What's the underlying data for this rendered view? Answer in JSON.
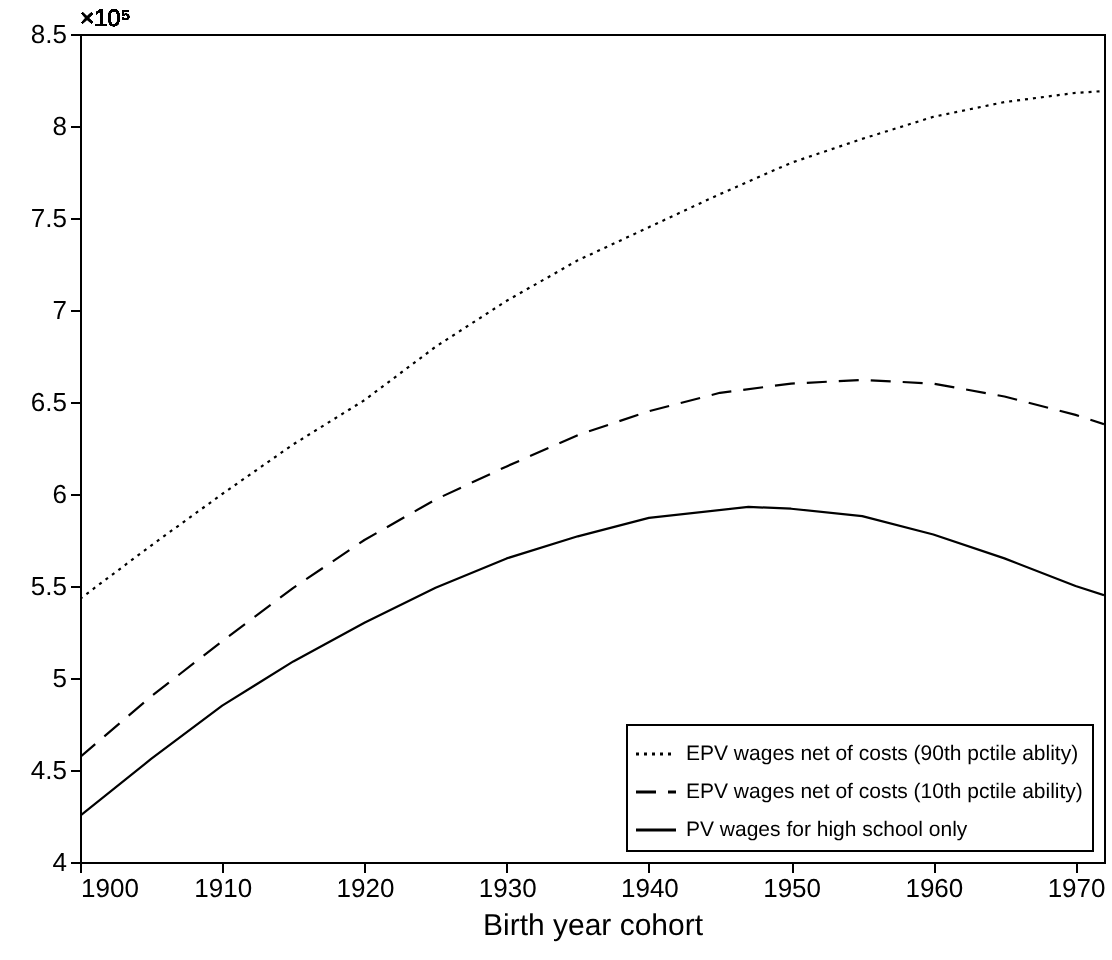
{
  "chart_data": {
    "type": "line",
    "xlabel": "Birth year cohort",
    "annotations": [
      "×10⁵"
    ],
    "xlim": [
      1900,
      1972
    ],
    "xticks": [
      1900,
      1910,
      1920,
      1930,
      1940,
      1950,
      1960,
      1970
    ],
    "ylim": [
      4,
      8.5
    ],
    "yticks": [
      4,
      4.5,
      5,
      5.5,
      6,
      6.5,
      7,
      7.5,
      8,
      8.5
    ],
    "legend": "bottom right",
    "grid": false,
    "marker": "none",
    "series": [
      {
        "name": "EPV wages net of costs (90th pctile ablity)",
        "color": "#000000",
        "line_style": "dotted",
        "x": [
          1900,
          1905,
          1910,
          1915,
          1920,
          1925,
          1930,
          1935,
          1940,
          1945,
          1950,
          1955,
          1960,
          1965,
          1970,
          1972
        ],
        "values": [
          5.43,
          5.72,
          6.0,
          6.27,
          6.51,
          6.8,
          7.05,
          7.27,
          7.45,
          7.63,
          7.8,
          7.93,
          8.05,
          8.13,
          8.18,
          8.19
        ]
      },
      {
        "name": "EPV wages net of costs (10th pctile ability)",
        "color": "#000000",
        "line_style": "dashed",
        "x": [
          1900,
          1905,
          1910,
          1915,
          1920,
          1925,
          1930,
          1935,
          1940,
          1945,
          1950,
          1955,
          1960,
          1965,
          1970,
          1972
        ],
        "values": [
          4.57,
          4.9,
          5.2,
          5.49,
          5.75,
          5.97,
          6.15,
          6.32,
          6.45,
          6.55,
          6.6,
          6.62,
          6.6,
          6.53,
          6.43,
          6.38
        ]
      },
      {
        "name": "PV wages for high school only",
        "color": "#000000",
        "line_style": "solid",
        "x": [
          1900,
          1905,
          1910,
          1915,
          1920,
          1925,
          1930,
          1935,
          1940,
          1947,
          1950,
          1955,
          1960,
          1965,
          1970,
          1972
        ],
        "values": [
          4.25,
          4.56,
          4.85,
          5.09,
          5.3,
          5.49,
          5.65,
          5.77,
          5.87,
          5.93,
          5.92,
          5.88,
          5.78,
          5.65,
          5.5,
          5.45
        ]
      }
    ]
  }
}
